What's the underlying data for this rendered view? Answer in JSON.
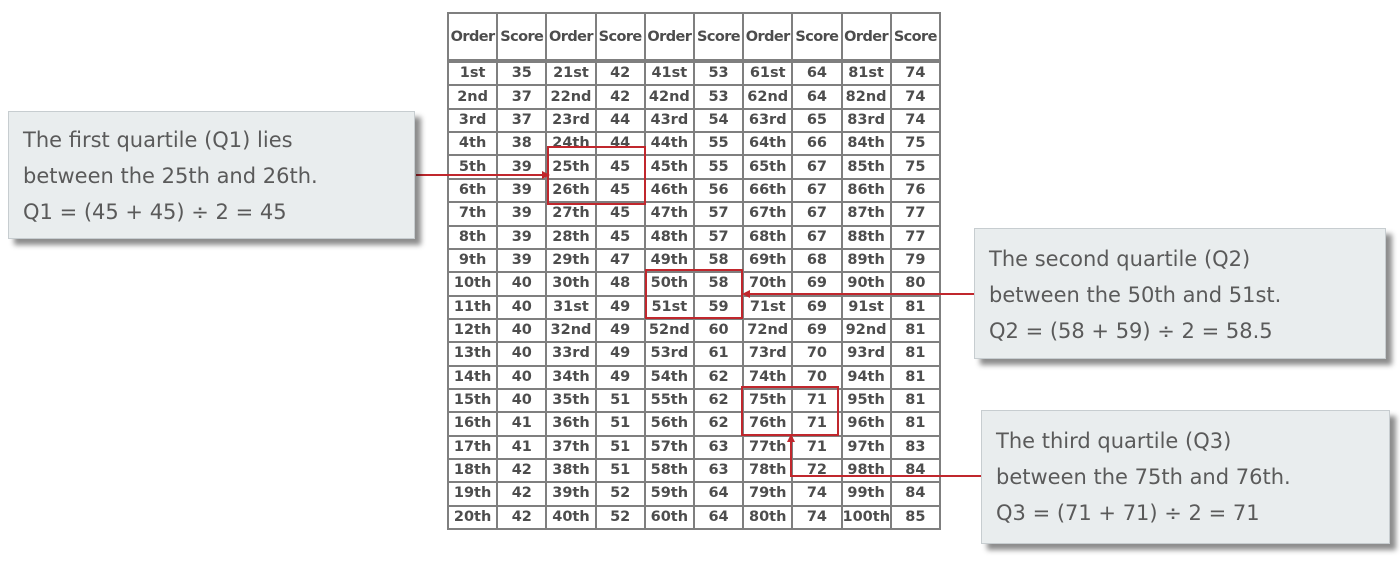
{
  "table": {
    "headers": [
      "Order",
      "Score",
      "Order",
      "Score",
      "Order",
      "Score",
      "Order",
      "Score",
      "Order",
      "Score"
    ],
    "rows": [
      [
        "1st",
        "35",
        "21st",
        "42",
        "41st",
        "53",
        "61st",
        "64",
        "81st",
        "74"
      ],
      [
        "2nd",
        "37",
        "22nd",
        "42",
        "42nd",
        "53",
        "62nd",
        "64",
        "82nd",
        "74"
      ],
      [
        "3rd",
        "37",
        "23rd",
        "44",
        "43rd",
        "54",
        "63rd",
        "65",
        "83rd",
        "74"
      ],
      [
        "4th",
        "38",
        "24th",
        "44",
        "44th",
        "55",
        "64th",
        "66",
        "84th",
        "75"
      ],
      [
        "5th",
        "39",
        "25th",
        "45",
        "45th",
        "55",
        "65th",
        "67",
        "85th",
        "75"
      ],
      [
        "6th",
        "39",
        "26th",
        "45",
        "46th",
        "56",
        "66th",
        "67",
        "86th",
        "76"
      ],
      [
        "7th",
        "39",
        "27th",
        "45",
        "47th",
        "57",
        "67th",
        "67",
        "87th",
        "77"
      ],
      [
        "8th",
        "39",
        "28th",
        "45",
        "48th",
        "57",
        "68th",
        "67",
        "88th",
        "77"
      ],
      [
        "9th",
        "39",
        "29th",
        "47",
        "49th",
        "58",
        "69th",
        "68",
        "89th",
        "79"
      ],
      [
        "10th",
        "40",
        "30th",
        "48",
        "50th",
        "58",
        "70th",
        "69",
        "90th",
        "80"
      ],
      [
        "11th",
        "40",
        "31st",
        "49",
        "51st",
        "59",
        "71st",
        "69",
        "91st",
        "81"
      ],
      [
        "12th",
        "40",
        "32nd",
        "49",
        "52nd",
        "60",
        "72nd",
        "69",
        "92nd",
        "81"
      ],
      [
        "13th",
        "40",
        "33rd",
        "49",
        "53rd",
        "61",
        "73rd",
        "70",
        "93rd",
        "81"
      ],
      [
        "14th",
        "40",
        "34th",
        "49",
        "54th",
        "62",
        "74th",
        "70",
        "94th",
        "81"
      ],
      [
        "15th",
        "40",
        "35th",
        "51",
        "55th",
        "62",
        "75th",
        "71",
        "95th",
        "81"
      ],
      [
        "16th",
        "41",
        "36th",
        "51",
        "56th",
        "62",
        "76th",
        "71",
        "96th",
        "81"
      ],
      [
        "17th",
        "41",
        "37th",
        "51",
        "57th",
        "63",
        "77th",
        "71",
        "97th",
        "83"
      ],
      [
        "18th",
        "42",
        "38th",
        "51",
        "58th",
        "63",
        "78th",
        "72",
        "98th",
        "84"
      ],
      [
        "19th",
        "42",
        "39th",
        "52",
        "59th",
        "64",
        "79th",
        "74",
        "99th",
        "84"
      ],
      [
        "20th",
        "42",
        "40th",
        "52",
        "60th",
        "64",
        "80th",
        "74",
        "100th",
        "85"
      ]
    ]
  },
  "callouts": {
    "q1": {
      "line1": "The first quartile (Q1) lies",
      "line2": "between the 25th and 26th.",
      "line3": "Q1 = (45 + 45) ÷ 2 = 45"
    },
    "q2": {
      "line1": "The second quartile (Q2)",
      "line2": "between the 50th and 51st.",
      "line3": "Q2 = (58 + 59) ÷ 2 = 58.5"
    },
    "q3": {
      "line1": "The third quartile (Q3)",
      "line2": "between the 75th and 76th.",
      "line3": "Q3 = (71 + 71) ÷ 2 = 71"
    }
  },
  "colors": {
    "highlight": "#c0272d",
    "callout_bg": "#e9edee",
    "table_text": "#4d4d4d",
    "grid": "#7f7f7f"
  }
}
